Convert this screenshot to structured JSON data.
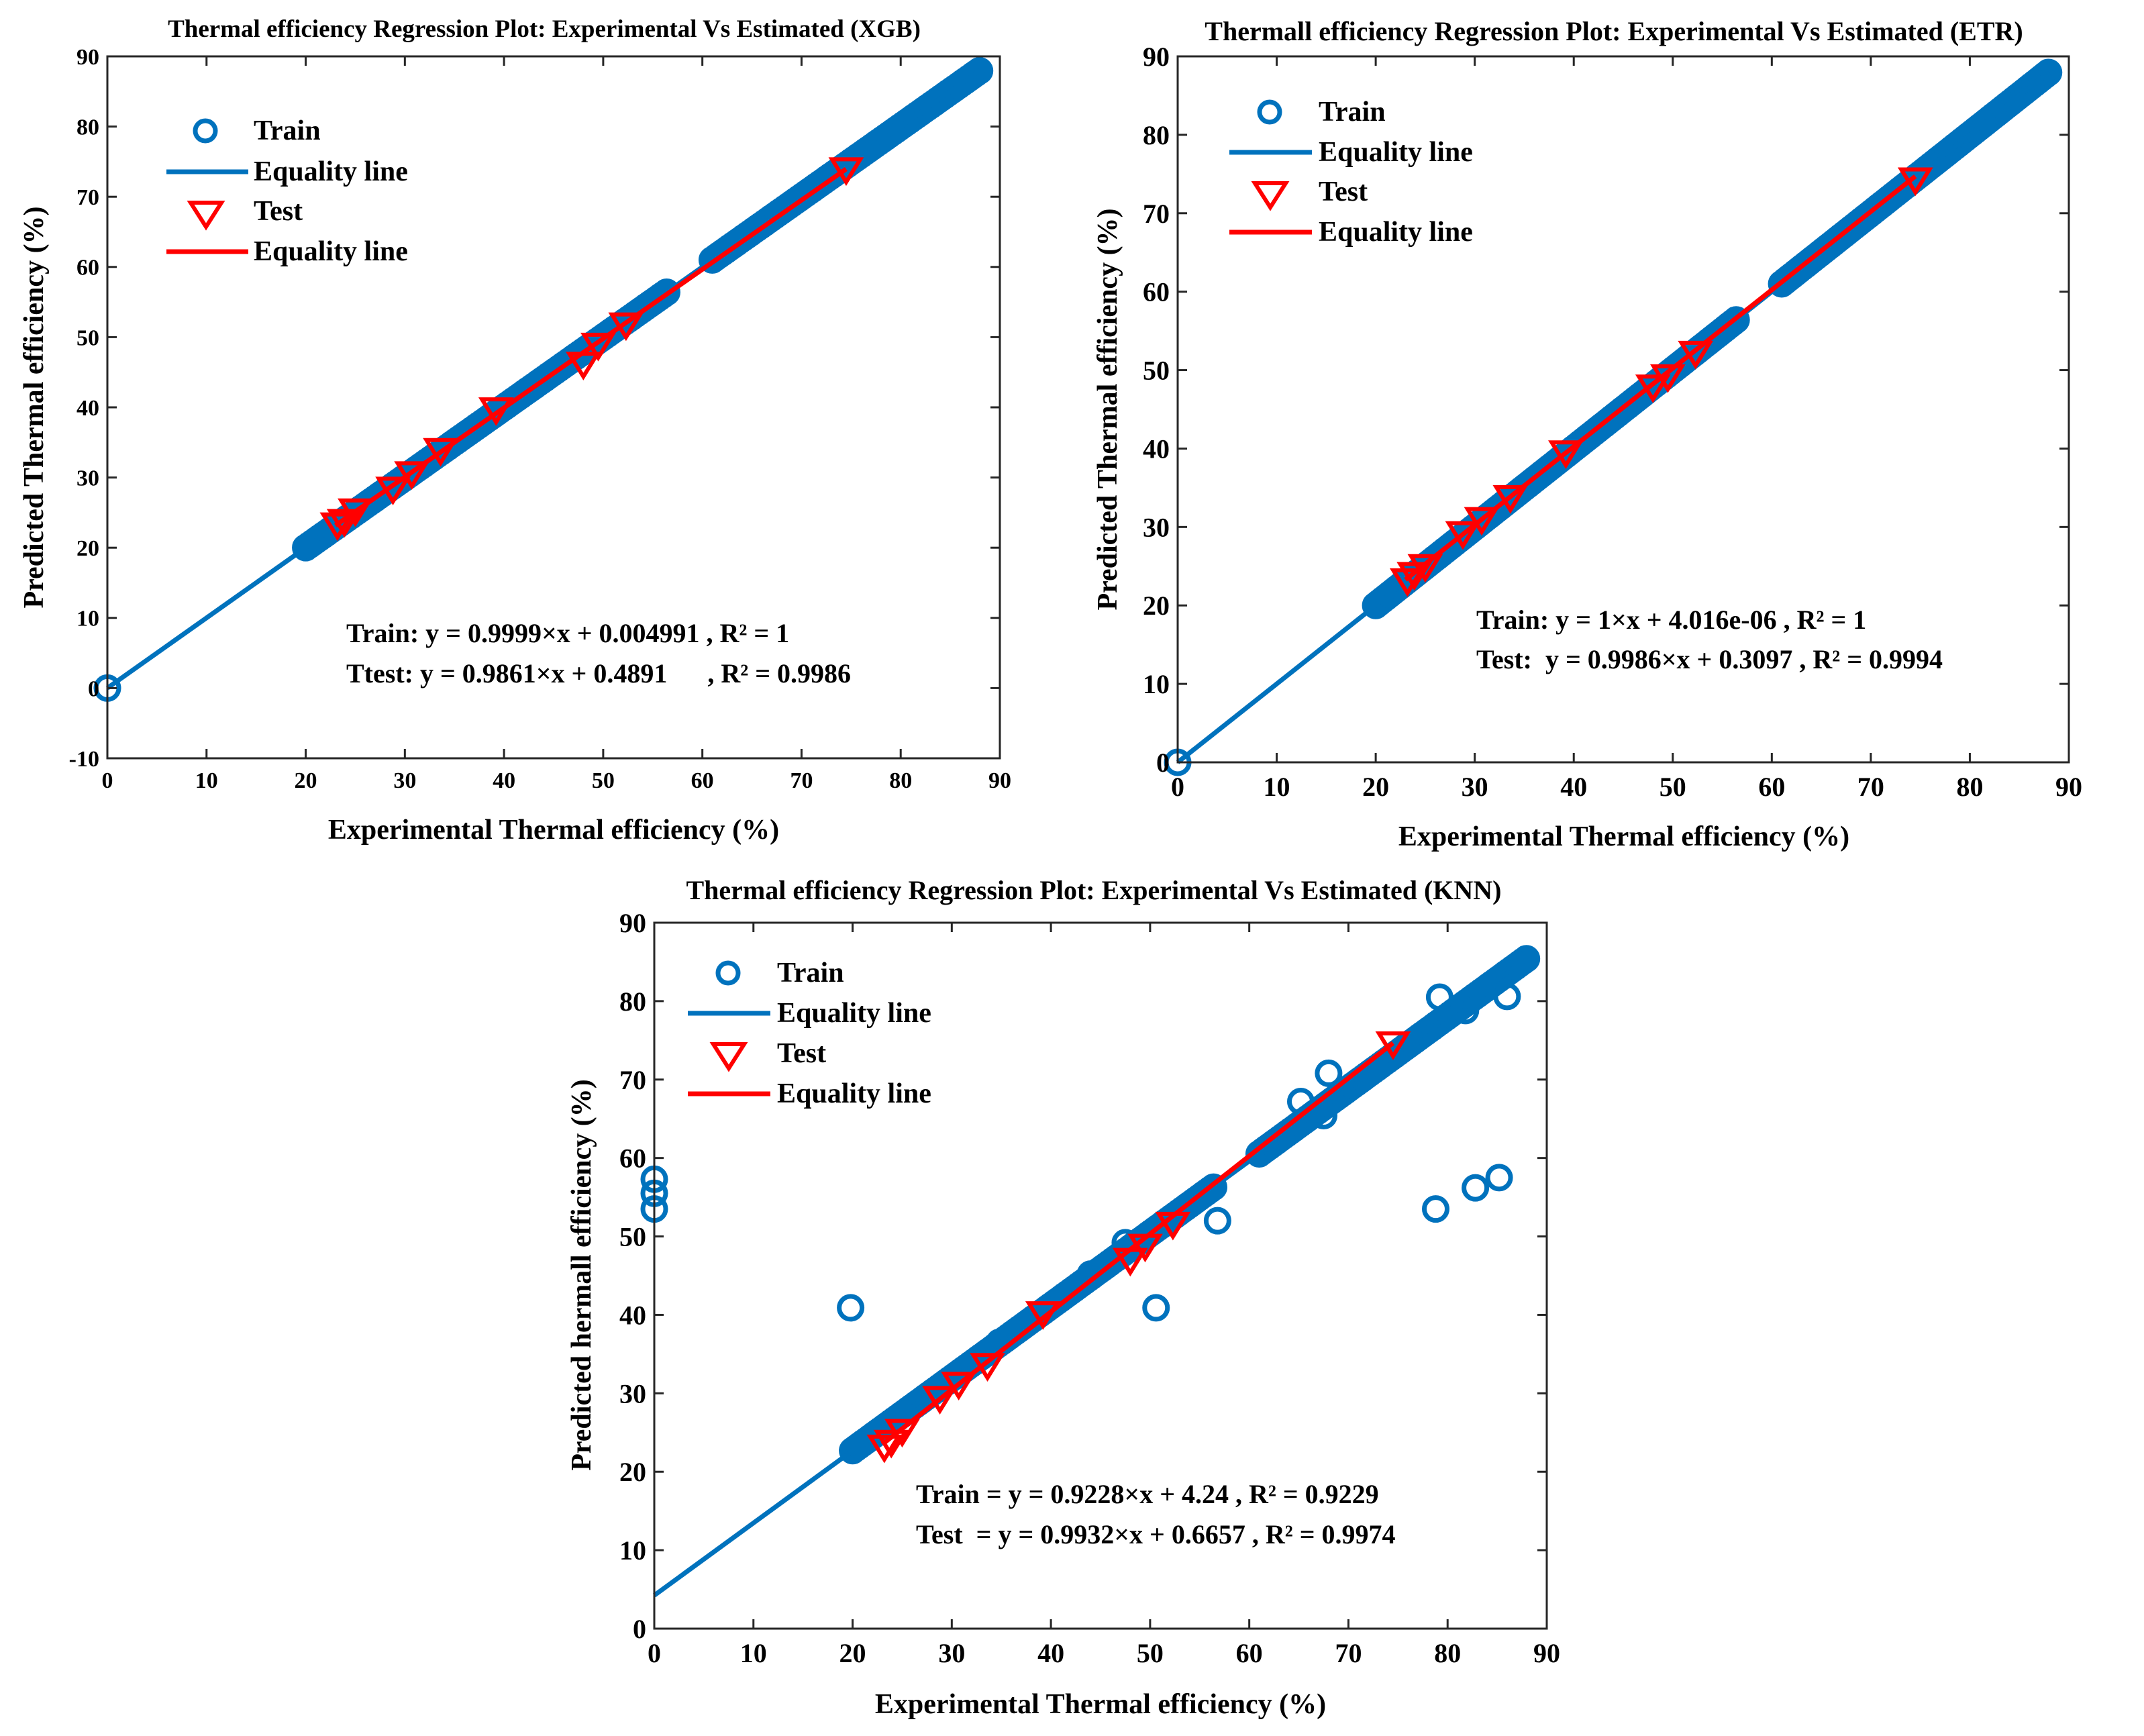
{
  "chart_data": [
    {
      "id": "xgb",
      "type": "scatter",
      "title": "Thermal efficiency Regression Plot: Experimental Vs Estimated (XGB)",
      "xlabel": "Experimental Thermal efficiency (%)",
      "ylabel": "Predicted Thermal efficiency (%)",
      "xlim": [
        0,
        90
      ],
      "ylim": [
        -10,
        90
      ],
      "xticks": [
        0,
        10,
        20,
        30,
        40,
        50,
        60,
        70,
        80,
        90
      ],
      "yticks": [
        -10,
        0,
        10,
        20,
        30,
        40,
        50,
        60,
        70,
        80,
        90
      ],
      "legend": {
        "placement": "top-left",
        "entries": [
          "Train",
          "Equality line",
          "Test",
          "Equality line"
        ]
      },
      "annotations": [
        "Train: y = 0.9999×x + 0.004991 , R² = 1",
        "Ttest: y = 0.9861×x + 0.4891      , R² = 0.9986"
      ],
      "series": [
        {
          "name": "Train",
          "marker": "circle",
          "color": "#0072BD",
          "ranges": [
            [
              20,
              56.5
            ],
            [
              61,
              88
            ]
          ],
          "points": [
            [
              0,
              0
            ]
          ]
        },
        {
          "name": "Equality line",
          "kind": "line",
          "color": "#0072BD",
          "slope": 0.9999,
          "intercept": 0.004991,
          "xrange": [
            0,
            88
          ]
        },
        {
          "name": "Test",
          "marker": "triangle-down",
          "color": "#FF0000",
          "points": [
            [
              23.2,
              23.3
            ],
            [
              23.9,
              23.8
            ],
            [
              25,
              25.3
            ],
            [
              28.8,
              28.4
            ],
            [
              30.7,
              30.6
            ],
            [
              33.6,
              33.9
            ],
            [
              39.2,
              39.7
            ],
            [
              48,
              46.2
            ],
            [
              49.5,
              48.9
            ],
            [
              52.3,
              51.8
            ],
            [
              74.5,
              73.9
            ]
          ]
        },
        {
          "name": "Equality line",
          "kind": "line",
          "color": "#FF0000",
          "slope": 0.9861,
          "intercept": 0.4891,
          "xrange": [
            23,
            74.5
          ]
        }
      ]
    },
    {
      "id": "etr",
      "type": "scatter",
      "title": "Thermall efficiency Regression Plot: Experimental Vs Estimated (ETR)",
      "xlabel": "Experimental Thermal efficiency (%)",
      "ylabel": "Predicted Thermal efficiency (%)",
      "xlim": [
        0,
        90
      ],
      "ylim": [
        0,
        90
      ],
      "xticks": [
        0,
        10,
        20,
        30,
        40,
        50,
        60,
        70,
        80,
        90
      ],
      "yticks": [
        0,
        10,
        20,
        30,
        40,
        50,
        60,
        70,
        80,
        90
      ],
      "legend": {
        "placement": "top-left",
        "entries": [
          "Train",
          "Equality line",
          "Test",
          "Equality line"
        ]
      },
      "annotations": [
        "Train: y = 1×x + 4.016e-06 , R² = 1",
        "Test:  y = 0.9986×x + 0.3097 , R² = 0.9994"
      ],
      "series": [
        {
          "name": "Train",
          "marker": "circle",
          "color": "#0072BD",
          "ranges": [
            [
              20,
              56.5
            ],
            [
              61,
              88
            ]
          ],
          "points": [
            [
              0,
              0
            ]
          ]
        },
        {
          "name": "Equality line",
          "kind": "line",
          "color": "#0072BD",
          "slope": 1,
          "intercept": 4.016e-06,
          "xrange": [
            0,
            88
          ]
        },
        {
          "name": "Test",
          "marker": "triangle-down",
          "color": "#FF0000",
          "points": [
            [
              23.2,
              23.2
            ],
            [
              23.9,
              24
            ],
            [
              25,
              25
            ],
            [
              28.8,
              29.2
            ],
            [
              30.7,
              31
            ],
            [
              33.6,
              33.8
            ],
            [
              39.2,
              39.5
            ],
            [
              48,
              47.9
            ],
            [
              49.5,
              49.2
            ],
            [
              52.3,
              52.2
            ],
            [
              74.5,
              74.3
            ]
          ]
        },
        {
          "name": "Equality line",
          "kind": "line",
          "color": "#FF0000",
          "slope": 0.9986,
          "intercept": 0.3097,
          "xrange": [
            23,
            74.5
          ]
        }
      ]
    },
    {
      "id": "knn",
      "type": "scatter",
      "title": "Thermal efficiency Regression Plot: Experimental Vs Estimated (KNN)",
      "xlabel": "Experimental Thermal efficiency (%)",
      "ylabel": "Predicted hermall efficiency (%)",
      "xlim": [
        0,
        90
      ],
      "ylim": [
        0,
        90
      ],
      "xticks": [
        0,
        10,
        20,
        30,
        40,
        50,
        60,
        70,
        80,
        90
      ],
      "yticks": [
        0,
        10,
        20,
        30,
        40,
        50,
        60,
        70,
        80,
        90
      ],
      "legend": {
        "placement": "top-left",
        "entries": [
          "Train",
          "Equality line",
          "Test",
          "Equality line"
        ]
      },
      "annotations": [
        "Train = y = 0.9228×x + 4.24 , R² = 0.9229",
        "Test  = y = 0.9932×x + 0.6657 , R² = 0.9974"
      ],
      "series": [
        {
          "name": "Train",
          "marker": "circle",
          "color": "#0072BD",
          "ranges": [
            [
              20,
              56.5
            ],
            [
              61,
              88
            ]
          ],
          "points": [
            [
              0,
              53.5
            ],
            [
              0,
              55.5
            ],
            [
              0,
              57.3
            ],
            [
              19.8,
              40.9
            ],
            [
              50.6,
              40.9
            ],
            [
              56.8,
              52
            ],
            [
              78.8,
              53.5
            ],
            [
              82.8,
              56.2
            ],
            [
              85.2,
              57.5
            ],
            [
              86,
              80.6
            ],
            [
              79.2,
              80.5
            ],
            [
              81.8,
              78.8
            ],
            [
              68,
              70.8
            ],
            [
              65.2,
              67.2
            ],
            [
              67.5,
              65.4
            ],
            [
              47.5,
              49.2
            ],
            [
              34.8,
              36.5
            ],
            [
              44,
              45.2
            ]
          ]
        },
        {
          "name": "Equality line",
          "kind": "line",
          "color": "#0072BD",
          "slope": 0.9228,
          "intercept": 4.24,
          "xrange": [
            0,
            88
          ]
        },
        {
          "name": "Test",
          "marker": "triangle-down",
          "color": "#FF0000",
          "points": [
            [
              23.2,
              23.2
            ],
            [
              23.9,
              23.8
            ],
            [
              25,
              25.2
            ],
            [
              28.8,
              29.4
            ],
            [
              30.7,
              31.2
            ],
            [
              33.6,
              33.6
            ],
            [
              39.2,
              40.2
            ],
            [
              48,
              47
            ],
            [
              49.5,
              48.8
            ],
            [
              52.3,
              51.6
            ],
            [
              74.5,
              74.6
            ]
          ]
        },
        {
          "name": "Equality line",
          "kind": "line",
          "color": "#FF0000",
          "slope": 0.9932,
          "intercept": 0.6657,
          "xrange": [
            23,
            74.5
          ]
        }
      ]
    }
  ]
}
